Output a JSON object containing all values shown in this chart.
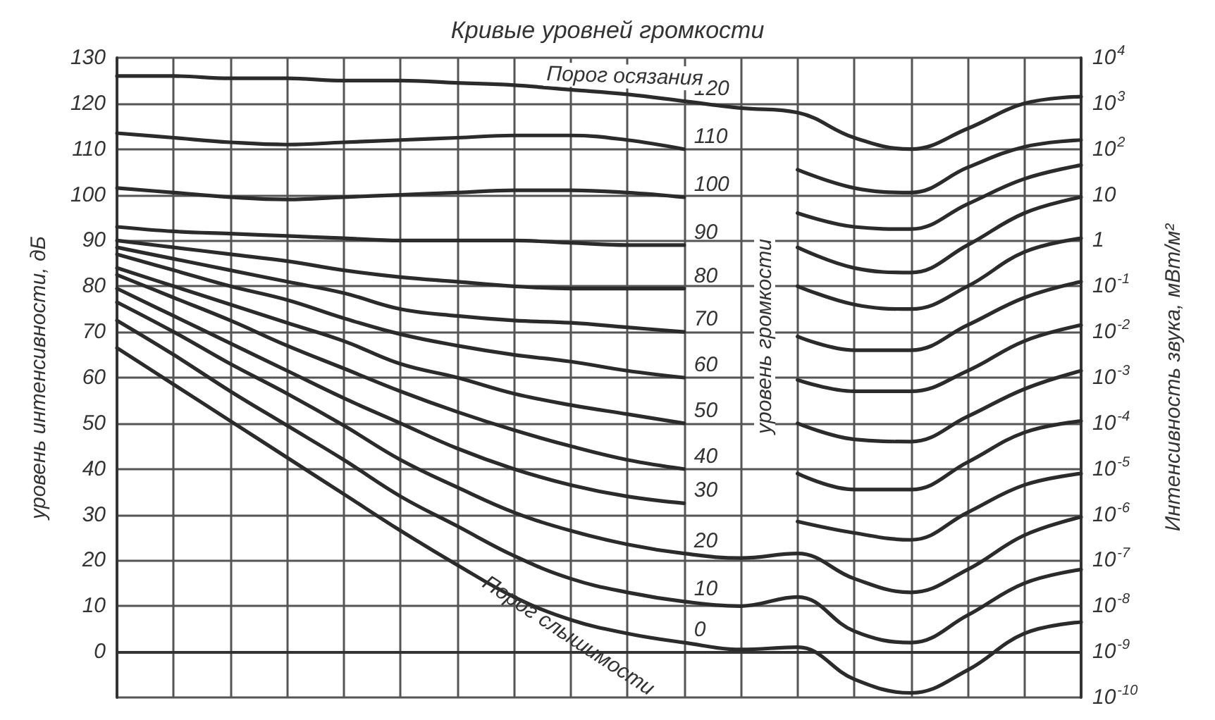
{
  "chart_data": {
    "type": "line",
    "title": "Кривые уровней громкости",
    "ylabel": "уровень интенсивности, дБ",
    "y2label": "Интенсивность звука, мВт/м²",
    "annotations": [
      "Порог осязания",
      "Порог слышимости",
      "уровень громкости"
    ],
    "categories": [
      null,
      null,
      null,
      null,
      null,
      null,
      null,
      null,
      null,
      null,
      null,
      null,
      null,
      null,
      null,
      null,
      null,
      null
    ],
    "series": [
      {
        "name": "120",
        "color": "#2b2b2b",
        "values": [
          126,
          126,
          125.5,
          125.5,
          125,
          125,
          124.5,
          124,
          123,
          122,
          120.5,
          119,
          118,
          112.5,
          110,
          114.5,
          120,
          121.5
        ]
      },
      {
        "name": "110",
        "color": "#2b2b2b",
        "values": [
          113.5,
          112.5,
          111.5,
          111,
          111.5,
          112,
          112.5,
          113,
          113,
          112,
          110,
          null,
          105.5,
          101.5,
          100.5,
          106,
          110.5,
          112
        ]
      },
      {
        "name": "100",
        "color": "#2b2b2b",
        "values": [
          101.5,
          100.5,
          99.5,
          99,
          99.5,
          100,
          100.5,
          101,
          101,
          100.5,
          99.5,
          null,
          96,
          93,
          92.5,
          98,
          103.5,
          106.5
        ]
      },
      {
        "name": "90",
        "color": "#2b2b2b",
        "values": [
          93,
          92,
          91.5,
          91,
          90.5,
          90,
          90,
          90,
          89.5,
          89,
          89,
          null,
          88.5,
          84,
          83,
          89,
          96,
          99.5
        ]
      },
      {
        "name": "80",
        "color": "#2b2b2b",
        "values": [
          90,
          88.5,
          87,
          85.5,
          83.5,
          82,
          81,
          80,
          79.5,
          79.5,
          79.5,
          null,
          80,
          76,
          75,
          80,
          87.5,
          90.5
        ]
      },
      {
        "name": "70",
        "color": "#2b2b2b",
        "values": [
          88.5,
          86,
          83.5,
          81,
          78.5,
          75,
          73.5,
          72.5,
          72,
          71,
          70,
          null,
          69,
          66,
          66,
          71.5,
          77.5,
          81
        ]
      },
      {
        "name": "60",
        "color": "#2b2b2b",
        "values": [
          87,
          83.5,
          80,
          77,
          73,
          69.5,
          67,
          65,
          63.5,
          61.5,
          60,
          null,
          59.5,
          57,
          57,
          61.5,
          68,
          71.5
        ]
      },
      {
        "name": "50",
        "color": "#2b2b2b",
        "values": [
          84,
          80,
          76,
          72,
          68,
          63,
          60,
          56.5,
          54,
          52,
          50,
          null,
          50,
          46.5,
          46,
          51.5,
          57.5,
          61.5
        ]
      },
      {
        "name": "40",
        "color": "#2b2b2b",
        "values": [
          82.5,
          77.5,
          72.5,
          67,
          62,
          57,
          52.5,
          48.5,
          45,
          42,
          40,
          null,
          39,
          35.5,
          35.5,
          41.5,
          48,
          50.5
        ]
      },
      {
        "name": "30",
        "color": "#2b2b2b",
        "values": [
          79.5,
          73.5,
          67.5,
          61.5,
          55.5,
          50,
          44.5,
          40,
          36.5,
          34,
          32.5,
          null,
          28.5,
          26,
          24.5,
          30.5,
          36.5,
          39
        ]
      },
      {
        "name": "20",
        "color": "#2b2b2b",
        "values": [
          76.5,
          70,
          63,
          56.5,
          49.5,
          42,
          36,
          30.5,
          26.5,
          23.5,
          21.5,
          20.5,
          21.5,
          16,
          13,
          18,
          25.5,
          29.5
        ]
      },
      {
        "name": "10",
        "color": "#2b2b2b",
        "values": [
          72.5,
          65,
          57,
          49.5,
          42,
          34,
          27.5,
          21,
          16,
          13,
          11,
          10,
          12,
          4.5,
          2,
          8,
          15,
          18
        ]
      },
      {
        "name": "0",
        "color": "#2b2b2b",
        "values": [
          66.5,
          58.5,
          50.5,
          42.5,
          34.5,
          26.5,
          19,
          12,
          7,
          4,
          2,
          0.5,
          1,
          -6,
          -9,
          -4,
          4,
          6.5
        ]
      }
    ],
    "ylim": [
      -10,
      130
    ],
    "yticks": [
      {
        "value": -10,
        "label": null
      },
      0,
      10,
      20,
      30,
      40,
      50,
      60,
      70,
      80,
      90,
      100,
      110,
      120,
      130
    ],
    "y2lim": [
      1e-10,
      10000
    ],
    "log": "y2",
    "y2ticks": [
      {
        "value": 1e-10,
        "label": "10$^{-10}$"
      },
      {
        "value": 1e-09,
        "label": "10$^{-9}$"
      },
      {
        "value": 1e-08,
        "label": "10$^{-8}$"
      },
      {
        "value": 1e-07,
        "label": "10$^{-7}$"
      },
      {
        "value": 1e-06,
        "label": "10$^{-6}$"
      },
      {
        "value": 1e-05,
        "label": "10$^{-5}$"
      },
      {
        "value": 0.0001,
        "label": "10$^{-4}$"
      },
      {
        "value": 0.001,
        "label": "10$^{-3}$"
      },
      {
        "value": 0.01,
        "label": "10$^{-2}$"
      },
      {
        "value": 0.1,
        "label": "10$^{-1}$"
      },
      {
        "value": 1,
        "label": "1"
      },
      {
        "value": 10,
        "label": "10"
      },
      {
        "value": 100,
        "label": "10$^{2}$"
      },
      {
        "value": 1000,
        "label": "10$^{3}$"
      },
      {
        "value": 10000,
        "label": "10$^{4}$"
      }
    ],
    "grid": true,
    "legend": false,
    "marker": "none",
    "line_style": "solid"
  }
}
